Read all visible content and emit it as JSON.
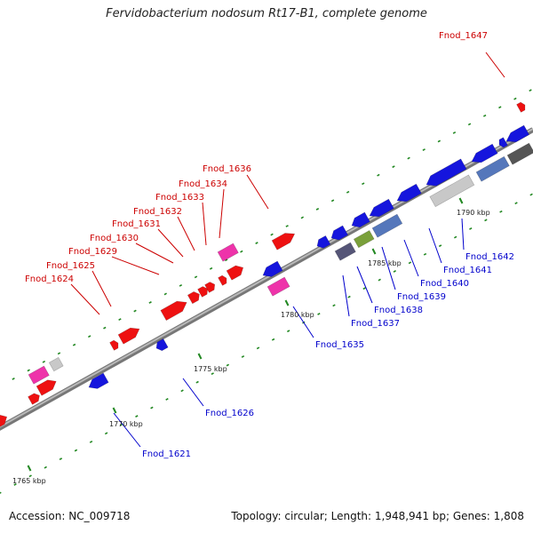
{
  "title": "Fervidobacterium nodosum Rt17-B1, complete genome",
  "footer": {
    "accession": "Accession: NC_009718",
    "topology": "Topology: circular; Length: 1,948,941 bp; Genes: 1,808"
  },
  "colors": {
    "forward_strand": "#ee0000",
    "reverse_strand": "#1111dd",
    "backbone": "#999999",
    "tick": "#228822",
    "label_forward": "#cc0000",
    "label_reverse": "#0000cc"
  },
  "scale_labels": [
    {
      "text": "1765 kbp"
    },
    {
      "text": "1770 kbp"
    },
    {
      "text": "1775 kbp"
    },
    {
      "text": "1780 kbp"
    },
    {
      "text": "1785 kbp"
    },
    {
      "text": "1790 kbp"
    }
  ],
  "gene_labels": [
    {
      "text": "Fnod_1647",
      "strand": "forward"
    },
    {
      "text": "Fnod_1636",
      "strand": "forward"
    },
    {
      "text": "Fnod_1634",
      "strand": "forward"
    },
    {
      "text": "Fnod_1633",
      "strand": "forward"
    },
    {
      "text": "Fnod_1632",
      "strand": "forward"
    },
    {
      "text": "Fnod_1631",
      "strand": "forward"
    },
    {
      "text": "Fnod_1630",
      "strand": "forward"
    },
    {
      "text": "Fnod_1629",
      "strand": "forward"
    },
    {
      "text": "Fnod_1625",
      "strand": "forward"
    },
    {
      "text": "Fnod_1624",
      "strand": "forward"
    },
    {
      "text": "Fnod_1642",
      "strand": "reverse"
    },
    {
      "text": "Fnod_1641",
      "strand": "reverse"
    },
    {
      "text": "Fnod_1640",
      "strand": "reverse"
    },
    {
      "text": "Fnod_1639",
      "strand": "reverse"
    },
    {
      "text": "Fnod_1638",
      "strand": "reverse"
    },
    {
      "text": "Fnod_1637",
      "strand": "reverse"
    },
    {
      "text": "Fnod_1635",
      "strand": "reverse"
    },
    {
      "text": "Fnod_1626",
      "strand": "reverse"
    },
    {
      "text": "Fnod_1621",
      "strand": "reverse"
    }
  ]
}
